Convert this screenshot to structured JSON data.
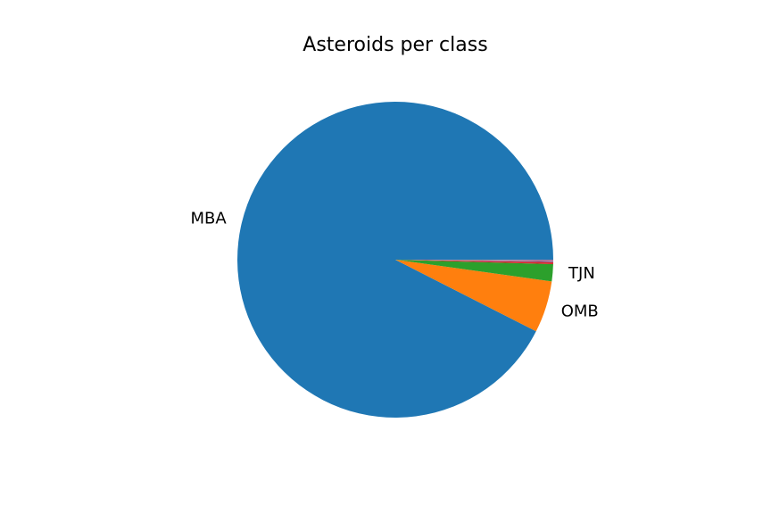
{
  "chart_data": {
    "type": "pie",
    "title": "Asteroids per class",
    "start_angle_deg": 0,
    "direction": "counterclockwise",
    "slices": [
      {
        "label": "MBA",
        "value": 92.6,
        "color": "#1f77b4"
      },
      {
        "label": "OMB",
        "value": 5.3,
        "color": "#ff7f0e"
      },
      {
        "label": "TJN",
        "value": 1.75,
        "color": "#2ca02c"
      },
      {
        "label": "",
        "value": 0.2,
        "color": "#d62728"
      },
      {
        "label": "",
        "value": 0.1,
        "color": "#9467bd"
      },
      {
        "label": "",
        "value": 0.05,
        "color": "#8c564b"
      },
      {
        "label": "",
        "value": 0.05,
        "color": "#e377c2"
      },
      {
        "label": "",
        "value": 0.05,
        "color": "#7f7f7f"
      }
    ]
  }
}
